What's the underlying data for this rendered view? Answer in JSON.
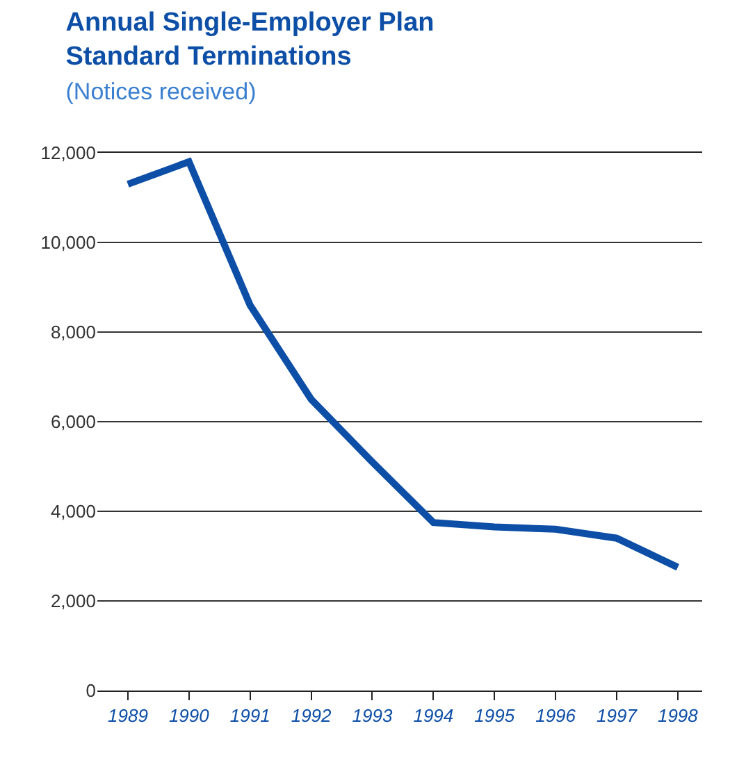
{
  "chart_data": {
    "type": "line",
    "title": "Annual Single-Employer Plan Standard Terminations",
    "subtitle": "(Notices received)",
    "categories": [
      "1989",
      "1990",
      "1991",
      "1992",
      "1993",
      "1994",
      "1995",
      "1996",
      "1997",
      "1998"
    ],
    "series": [
      {
        "color": "#0d4ea6",
        "values": [
          11300,
          11800,
          8600,
          6500,
          5100,
          3750,
          3650,
          3600,
          3400,
          2750
        ]
      }
    ],
    "ylim": [
      0,
      12000
    ],
    "yticks": [
      0,
      {
        "value": 2000,
        "label": "2,000"
      },
      {
        "value": 4000,
        "label": "4,000"
      },
      {
        "value": 6000,
        "label": "6,000"
      },
      {
        "value": 8000,
        "label": "8,000"
      },
      {
        "value": 10000,
        "label": "10,000"
      },
      {
        "value": 12000,
        "label": "12,000"
      }
    ],
    "grid": "y",
    "marker": "none",
    "line_style": "solid"
  }
}
